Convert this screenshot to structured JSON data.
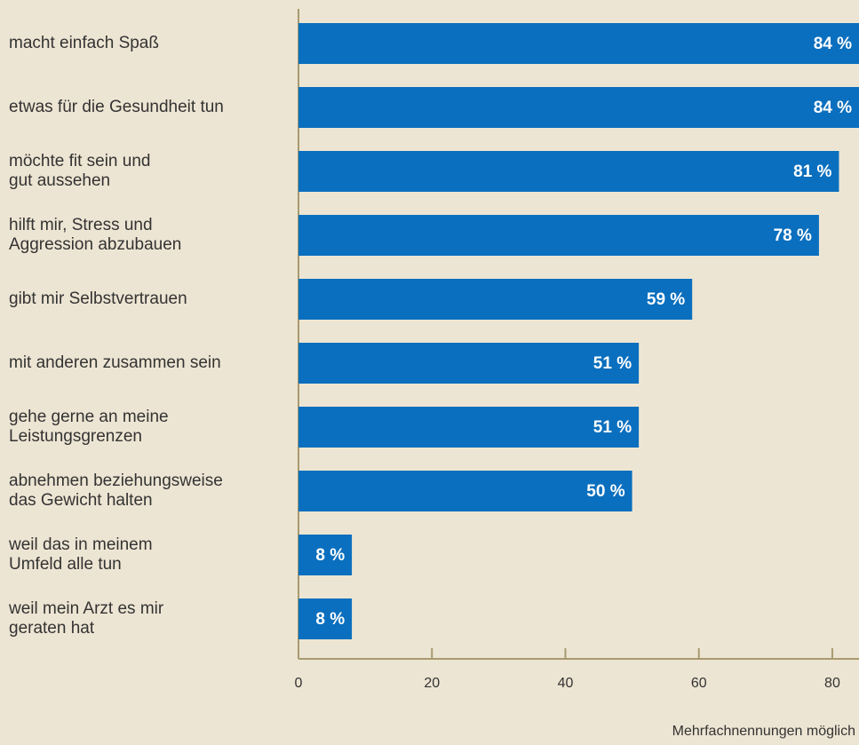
{
  "chart_data": {
    "type": "bar",
    "orientation": "horizontal",
    "categories": [
      "macht einfach Spaß",
      "etwas für die Gesundheit tun",
      "möchte fit sein und\ngut aussehen",
      "hilft mir, Stress und\nAggression abzubauen",
      "gibt mir Selbstvertrauen",
      "mit anderen zusammen sein",
      "gehe gerne an meine\nLeistungsgrenzen",
      "abnehmen beziehungsweise\ndas Gewicht halten",
      "weil das in meinem\nUmfeld alle tun",
      "weil mein Arzt es mir\ngeraten hat"
    ],
    "values": [
      84,
      84,
      81,
      78,
      59,
      51,
      51,
      50,
      8,
      8
    ],
    "value_labels": [
      "84 %",
      "84 %",
      "81 %",
      "78 %",
      "59 %",
      "51 %",
      "51 %",
      "50 %",
      "8 %",
      "8 %"
    ],
    "color": "#0a6fbe",
    "xlim": [
      0,
      84
    ],
    "xticks": [
      0,
      20,
      40,
      60,
      80
    ],
    "footnote": "Mehrfachnennungen möglich"
  }
}
